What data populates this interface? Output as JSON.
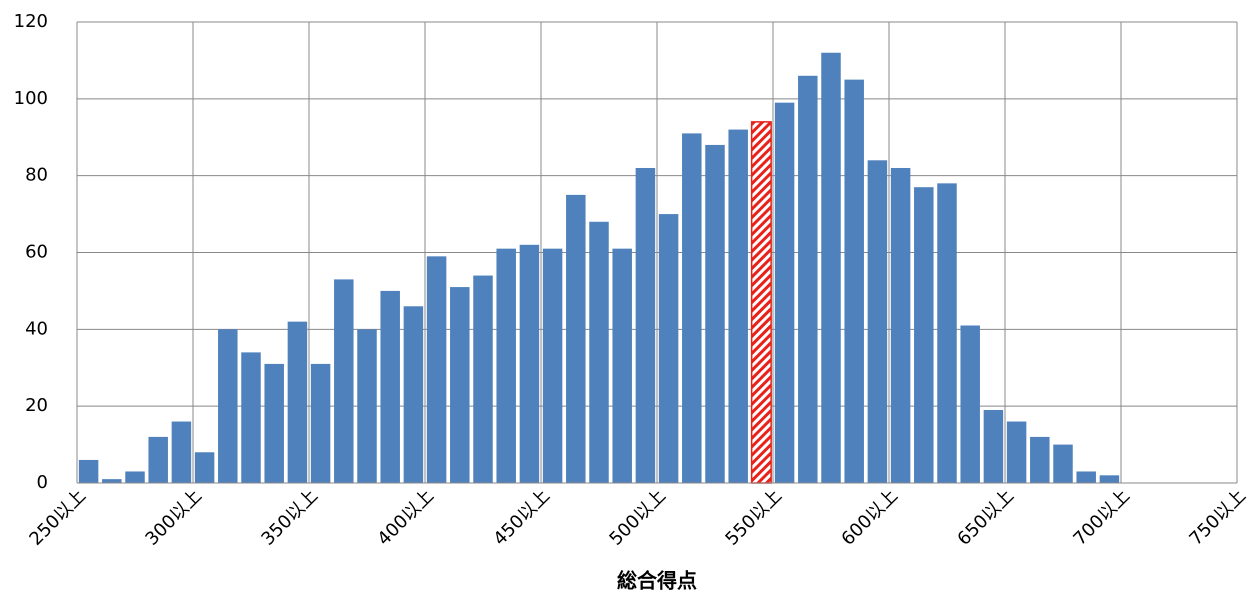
{
  "chart_data": {
    "type": "histogram",
    "xlabel": "総合得点",
    "bins": [
      250,
      260,
      270,
      280,
      290,
      300,
      310,
      320,
      330,
      340,
      350,
      360,
      370,
      380,
      390,
      400,
      410,
      420,
      430,
      440,
      450,
      460,
      470,
      480,
      490,
      500,
      510,
      520,
      530,
      540,
      550,
      560,
      570,
      580,
      590,
      600,
      610,
      620,
      630,
      640,
      650,
      660,
      670,
      680,
      690,
      700,
      710,
      720,
      730,
      740,
      750
    ],
    "values": [
      6,
      1,
      3,
      12,
      16,
      8,
      40,
      34,
      31,
      42,
      31,
      53,
      40,
      50,
      46,
      59,
      51,
      54,
      61,
      62,
      61,
      75,
      68,
      61,
      82,
      70,
      91,
      88,
      92,
      94,
      99,
      106,
      112,
      105,
      84,
      82,
      77,
      78,
      41,
      19,
      16,
      12,
      10,
      3,
      2,
      0,
      0,
      0,
      0,
      0
    ],
    "colors": [
      "#4f81bd",
      "#4f81bd",
      "#4f81bd",
      "#4f81bd",
      "#4f81bd",
      "#4f81bd",
      "#4f81bd",
      "#4f81bd",
      "#4f81bd",
      "#4f81bd",
      "#4f81bd",
      "#4f81bd",
      "#4f81bd",
      "#4f81bd",
      "#4f81bd",
      "#4f81bd",
      "#4f81bd",
      "#4f81bd",
      "#4f81bd",
      "#4f81bd",
      "#4f81bd",
      "#4f81bd",
      "#4f81bd",
      "#4f81bd",
      "#4f81bd",
      "#4f81bd",
      "#4f81bd",
      "#4f81bd",
      "#4f81bd",
      "#e8211b",
      "#4f81bd",
      "#4f81bd",
      "#4f81bd",
      "#4f81bd",
      "#4f81bd",
      "#4f81bd",
      "#4f81bd",
      "#4f81bd",
      "#4f81bd",
      "#4f81bd",
      "#4f81bd",
      "#4f81bd",
      "#4f81bd",
      "#4f81bd",
      "#4f81bd",
      "#4f81bd",
      "#4f81bd",
      "#4f81bd",
      "#4f81bd",
      "#4f81bd"
    ],
    "xlim": [
      250,
      750
    ],
    "ylim": [
      0,
      120
    ],
    "xticks": [
      {
        "value": 250,
        "label": "250以上"
      },
      {
        "value": 300,
        "label": "300以上"
      },
      {
        "value": 350,
        "label": "350以上"
      },
      {
        "value": 400,
        "label": "400以上"
      },
      {
        "value": 450,
        "label": "450以上"
      },
      {
        "value": 500,
        "label": "500以上"
      },
      {
        "value": 550,
        "label": "550以上"
      },
      {
        "value": 600,
        "label": "600以上"
      },
      {
        "value": 650,
        "label": "650以上"
      },
      {
        "value": 700,
        "label": "700以上"
      },
      {
        "value": 750,
        "label": "750以上"
      }
    ],
    "yticks": [
      0,
      20,
      40,
      60,
      80,
      100,
      120
    ],
    "grid": true
  }
}
